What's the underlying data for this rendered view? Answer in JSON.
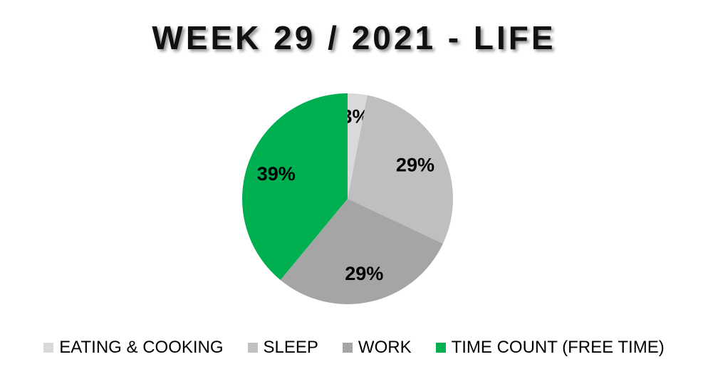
{
  "chart_data": {
    "type": "pie",
    "title": "WEEK 29 / 2021 - LIFE",
    "categories": [
      "EATING & COOKING",
      "SLEEP",
      "WORK",
      "TIME COUNT (FREE TIME)"
    ],
    "values": [
      3,
      29,
      29,
      39
    ],
    "labels": [
      "3%",
      "29%",
      "29%",
      "39%"
    ],
    "colors": [
      "#D9D9D9",
      "#BFBFBF",
      "#A5A5A5",
      "#00B050"
    ],
    "start_angle": "top, clockwise",
    "legend_position": "bottom"
  }
}
